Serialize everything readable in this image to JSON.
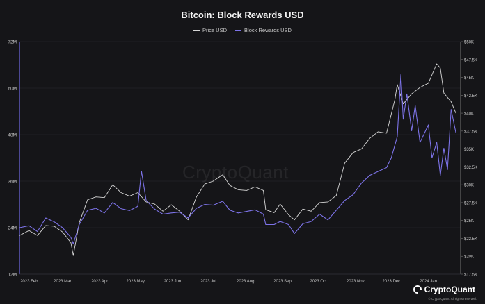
{
  "chart_data": {
    "type": "line",
    "title": "Bitcoin: Block Rewards USD",
    "xlabel": "",
    "ylabel": "",
    "y2label": "",
    "legend_position": "top-center",
    "grid": true,
    "xlim": [
      "2023-01-24",
      "2024-01-28"
    ],
    "ylim": [
      12000000,
      72000000
    ],
    "y2lim": [
      17500,
      50000
    ],
    "x_tick_labels": [
      "2023 Feb",
      "2023 Mar",
      "2023 Apr",
      "2023 May",
      "2023 Jun",
      "2023 Jul",
      "2023 Aug",
      "2023 Sep",
      "2023 Oct",
      "2023 Nov",
      "2023 Dec",
      "2024 Jan"
    ],
    "x_tick_dates": [
      "2023-02-01",
      "2023-03-01",
      "2023-04-01",
      "2023-05-01",
      "2023-06-01",
      "2023-07-01",
      "2023-08-01",
      "2023-09-01",
      "2023-10-01",
      "2023-11-01",
      "2023-12-01",
      "2024-01-01"
    ],
    "y_tick_labels": [
      "12M",
      "24M",
      "36M",
      "48M",
      "60M",
      "72M"
    ],
    "y_tick_values": [
      12000000,
      24000000,
      36000000,
      48000000,
      60000000,
      72000000
    ],
    "y2_tick_labels": [
      "$17.5K",
      "$20K",
      "$22.5K",
      "$25K",
      "$27.5K",
      "$30K",
      "$32.5K",
      "$35K",
      "$37.5K",
      "$40K",
      "$42.5K",
      "$45K",
      "$47.5K",
      "$50K"
    ],
    "y2_tick_values": [
      17500,
      20000,
      22500,
      25000,
      27500,
      30000,
      32500,
      35000,
      37500,
      40000,
      42500,
      45000,
      47500,
      50000
    ],
    "series": [
      {
        "name": "Price USD",
        "axis": "right",
        "color": "#d6d6d6",
        "points": [
          [
            "2023-01-24",
            22900
          ],
          [
            "2023-02-01",
            23600
          ],
          [
            "2023-02-08",
            22900
          ],
          [
            "2023-02-15",
            24300
          ],
          [
            "2023-02-22",
            24200
          ],
          [
            "2023-03-01",
            23400
          ],
          [
            "2023-03-08",
            21900
          ],
          [
            "2023-03-10",
            20100
          ],
          [
            "2023-03-15",
            24700
          ],
          [
            "2023-03-22",
            27900
          ],
          [
            "2023-03-29",
            28300
          ],
          [
            "2023-04-05",
            28200
          ],
          [
            "2023-04-12",
            30000
          ],
          [
            "2023-04-19",
            28900
          ],
          [
            "2023-04-26",
            28400
          ],
          [
            "2023-05-03",
            28900
          ],
          [
            "2023-05-10",
            27600
          ],
          [
            "2023-05-17",
            27300
          ],
          [
            "2023-05-24",
            26300
          ],
          [
            "2023-05-31",
            27200
          ],
          [
            "2023-06-07",
            26300
          ],
          [
            "2023-06-14",
            25100
          ],
          [
            "2023-06-21",
            28300
          ],
          [
            "2023-06-28",
            30100
          ],
          [
            "2023-07-05",
            30500
          ],
          [
            "2023-07-13",
            31400
          ],
          [
            "2023-07-19",
            29900
          ],
          [
            "2023-07-26",
            29300
          ],
          [
            "2023-08-02",
            29200
          ],
          [
            "2023-08-09",
            29700
          ],
          [
            "2023-08-16",
            29200
          ],
          [
            "2023-08-18",
            26500
          ],
          [
            "2023-08-25",
            26100
          ],
          [
            "2023-08-30",
            27300
          ],
          [
            "2023-09-06",
            25800
          ],
          [
            "2023-09-11",
            25100
          ],
          [
            "2023-09-18",
            26600
          ],
          [
            "2023-09-25",
            26300
          ],
          [
            "2023-10-02",
            27500
          ],
          [
            "2023-10-09",
            27600
          ],
          [
            "2023-10-16",
            28500
          ],
          [
            "2023-10-23",
            33000
          ],
          [
            "2023-10-30",
            34500
          ],
          [
            "2023-11-06",
            35000
          ],
          [
            "2023-11-13",
            36500
          ],
          [
            "2023-11-20",
            37400
          ],
          [
            "2023-11-27",
            37200
          ],
          [
            "2023-12-04",
            41900
          ],
          [
            "2023-12-06",
            44000
          ],
          [
            "2023-12-11",
            41300
          ],
          [
            "2023-12-18",
            42700
          ],
          [
            "2023-12-25",
            43600
          ],
          [
            "2024-01-01",
            44200
          ],
          [
            "2024-01-08",
            46900
          ],
          [
            "2024-01-11",
            46300
          ],
          [
            "2024-01-14",
            42800
          ],
          [
            "2024-01-20",
            41600
          ],
          [
            "2024-01-24",
            40000
          ]
        ]
      },
      {
        "name": "Block Rewards USD",
        "axis": "left",
        "color": "#7d73e8",
        "points": [
          [
            "2023-01-24",
            24000000
          ],
          [
            "2023-02-01",
            24500000
          ],
          [
            "2023-02-08",
            23000000
          ],
          [
            "2023-02-15",
            26500000
          ],
          [
            "2023-02-22",
            25500000
          ],
          [
            "2023-03-01",
            24000000
          ],
          [
            "2023-03-08",
            21500000
          ],
          [
            "2023-03-10",
            19800000
          ],
          [
            "2023-03-15",
            24800000
          ],
          [
            "2023-03-22",
            28500000
          ],
          [
            "2023-03-29",
            29000000
          ],
          [
            "2023-04-05",
            27800000
          ],
          [
            "2023-04-12",
            30500000
          ],
          [
            "2023-04-19",
            28900000
          ],
          [
            "2023-04-26",
            28400000
          ],
          [
            "2023-05-03",
            29500000
          ],
          [
            "2023-05-06",
            38600000
          ],
          [
            "2023-05-10",
            31000000
          ],
          [
            "2023-05-17",
            28800000
          ],
          [
            "2023-05-24",
            27500000
          ],
          [
            "2023-05-31",
            27800000
          ],
          [
            "2023-06-07",
            28000000
          ],
          [
            "2023-06-14",
            26500000
          ],
          [
            "2023-06-21",
            29000000
          ],
          [
            "2023-06-28",
            30000000
          ],
          [
            "2023-07-05",
            29800000
          ],
          [
            "2023-07-13",
            30800000
          ],
          [
            "2023-07-19",
            28500000
          ],
          [
            "2023-07-26",
            27800000
          ],
          [
            "2023-08-02",
            28200000
          ],
          [
            "2023-08-09",
            28600000
          ],
          [
            "2023-08-16",
            27500000
          ],
          [
            "2023-08-18",
            24800000
          ],
          [
            "2023-08-25",
            24800000
          ],
          [
            "2023-08-30",
            25600000
          ],
          [
            "2023-09-06",
            24800000
          ],
          [
            "2023-09-11",
            22500000
          ],
          [
            "2023-09-18",
            25000000
          ],
          [
            "2023-09-25",
            25600000
          ],
          [
            "2023-10-02",
            27500000
          ],
          [
            "2023-10-09",
            26000000
          ],
          [
            "2023-10-16",
            28500000
          ],
          [
            "2023-10-23",
            31000000
          ],
          [
            "2023-10-30",
            32500000
          ],
          [
            "2023-11-06",
            35500000
          ],
          [
            "2023-11-13",
            37500000
          ],
          [
            "2023-11-20",
            38500000
          ],
          [
            "2023-11-27",
            39500000
          ],
          [
            "2023-12-01",
            42000000
          ],
          [
            "2023-12-06",
            47500000
          ],
          [
            "2023-12-09",
            63500000
          ],
          [
            "2023-12-11",
            52000000
          ],
          [
            "2023-12-14",
            58500000
          ],
          [
            "2023-12-18",
            49000000
          ],
          [
            "2023-12-21",
            55500000
          ],
          [
            "2023-12-25",
            46000000
          ],
          [
            "2024-01-01",
            50500000
          ],
          [
            "2024-01-04",
            42000000
          ],
          [
            "2024-01-08",
            46000000
          ],
          [
            "2024-01-11",
            37500000
          ],
          [
            "2024-01-14",
            44500000
          ],
          [
            "2024-01-17",
            39000000
          ],
          [
            "2024-01-20",
            54500000
          ],
          [
            "2024-01-24",
            48500000
          ]
        ]
      }
    ]
  },
  "watermark": "CryptoQuant",
  "logo": {
    "text": "CryptoQuant",
    "copyright": "© CryptoQuant. All rights reserved."
  }
}
